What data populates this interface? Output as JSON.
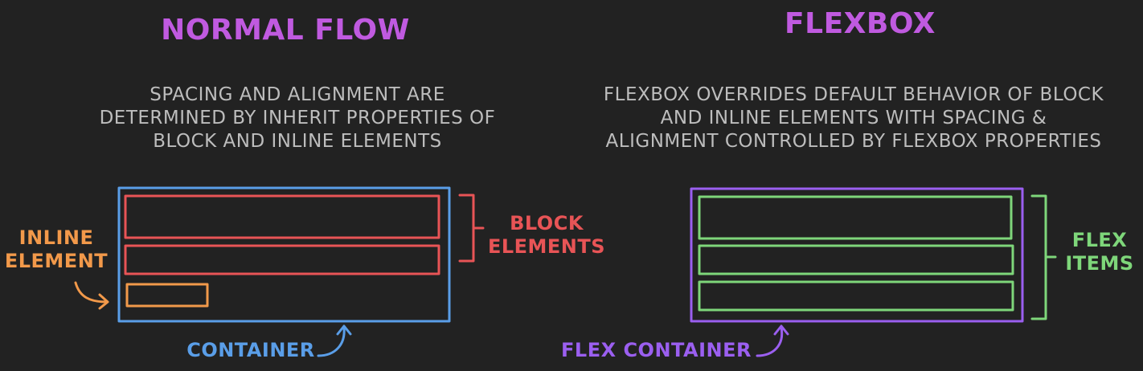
{
  "colors": {
    "background": "#222222",
    "title": "#c05ae0",
    "description": "#bdbdbd",
    "container": "#5a9ee8",
    "block": "#e85456",
    "inline": "#f2994a",
    "flex_container": "#9b5ff0",
    "flex_item": "#7ed67a"
  },
  "normal_flow": {
    "title": "NORMAL FLOW",
    "description": [
      "SPACING AND ALIGNMENT ARE",
      "DETERMINED BY INHERIT PROPERTIES OF",
      "BLOCK AND INLINE ELEMENTS"
    ],
    "block_label": [
      "BLOCK",
      "ELEMENTS"
    ],
    "inline_label": [
      "INLINE",
      "ELEMENT"
    ],
    "container_label": "CONTAINER"
  },
  "flexbox": {
    "title": "FLEXBOX",
    "description": [
      "FLEXBOX OVERRIDES DEFAULT BEHAVIOR OF BLOCK",
      "AND INLINE ELEMENTS WITH SPACING &",
      "ALIGNMENT CONTROLLED BY FLEXBOX PROPERTIES"
    ],
    "items_label": [
      "FLEX",
      "ITEMS"
    ],
    "container_label": "FLEX CONTAINER"
  }
}
